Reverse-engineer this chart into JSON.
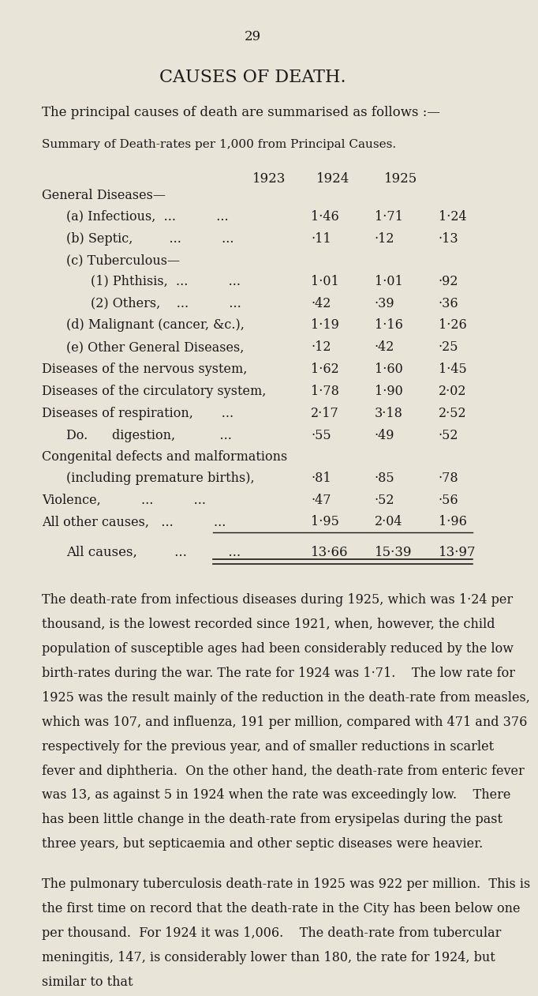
{
  "page_number": "29",
  "title": "CAUSES OF DEATH.",
  "intro": "The principal causes of death are summarised as follows :—",
  "table_title": "Summary of Death-rates per 1,000 from Principal Causes.",
  "col_headers": [
    "1923",
    "1924",
    "1925"
  ],
  "rows": [
    {
      "label": "General Diseases—",
      "indent": 0,
      "vals": [
        "",
        "",
        ""
      ],
      "bold": false,
      "header": true
    },
    {
      "label": "(a) Infectious,  ...          ...",
      "indent": 1,
      "vals": [
        "1·46",
        "1·71",
        "1·24"
      ],
      "bold": false
    },
    {
      "label": "(b) Septic,         ...          ...",
      "indent": 1,
      "vals": [
        "·11",
        "·12",
        "·13"
      ],
      "bold": false
    },
    {
      "label": "(c) Tuberculous—",
      "indent": 1,
      "vals": [
        "",
        "",
        ""
      ],
      "bold": false,
      "header": true
    },
    {
      "label": "(1) Phthisis,  ...          ...",
      "indent": 2,
      "vals": [
        "1·01",
        "1·01",
        "·92"
      ],
      "bold": false
    },
    {
      "label": "(2) Others,    ...          ...",
      "indent": 2,
      "vals": [
        "·42",
        "·39",
        "·36"
      ],
      "bold": false
    },
    {
      "label": "(d) Malignant (cancer, &c.),",
      "indent": 1,
      "vals": [
        "1·19",
        "1·16",
        "1·26"
      ],
      "bold": false
    },
    {
      "label": "(e) Other General Diseases,",
      "indent": 1,
      "vals": [
        "·12",
        "·42",
        "·25"
      ],
      "bold": false
    },
    {
      "label": "Diseases of the nervous system,",
      "indent": 0,
      "vals": [
        "1·62",
        "1·60",
        "1·45"
      ],
      "bold": false
    },
    {
      "label": "Diseases of the circulatory system,",
      "indent": 0,
      "vals": [
        "1·78",
        "1·90",
        "2·02"
      ],
      "bold": false
    },
    {
      "label": "Diseases of respiration,       ...",
      "indent": 0,
      "vals": [
        "2·17",
        "3·18",
        "2·52"
      ],
      "bold": false
    },
    {
      "label": "Do.      digestion,           ...",
      "indent": 1,
      "vals": [
        "·55",
        "·49",
        "·52"
      ],
      "bold": false
    },
    {
      "label": "Congenital defects and malformations",
      "indent": 0,
      "vals": [
        "",
        "",
        ""
      ],
      "bold": false,
      "header": true
    },
    {
      "label": "(including premature births),",
      "indent": 1,
      "vals": [
        "·81",
        "·85",
        "·78"
      ],
      "bold": false
    },
    {
      "label": "Violence,          ...          ...",
      "indent": 0,
      "vals": [
        "·47",
        "·52",
        "·56"
      ],
      "bold": false
    },
    {
      "label": "All other causes,   ...          ...",
      "indent": 0,
      "vals": [
        "1·95",
        "2·04",
        "1·96"
      ],
      "bold": false
    },
    {
      "label": "All causes,         ...          ...",
      "indent": 1,
      "vals": [
        "13·66",
        "15·39",
        "13·97"
      ],
      "bold": true,
      "total": true
    }
  ],
  "para1": "The death-rate from infectious diseases during 1925, which was 1·24 per thousand, is the lowest recorded since 1921, when, however, the child population of susceptible ages had been considerably reduced by the low birth-rates during the war. The rate for 1924 was 1·71.    The low rate for 1925 was the result mainly of the reduction in the death-rate from measles, which was 107, and influenza, 191 per million, compared with 471 and 376 respectively for the previous year, and of smaller reductions in scarlet fever and diphtheria.  On the other hand, the death-rate from enteric fever was 13, as against 5 in 1924 when the rate was exceedingly low.    There has been little change in the death-rate from erysipelas during the past three years, but septicaemia and other septic diseases were heavier.",
  "para2": "The pulmonary tuberculosis death-rate in 1925 was 922 per million.  This is the first time on record that the death-rate in the City has been below one per thousand.  For 1924 it was 1,006.    The death-rate from tubercular meningitis, 147, is considerably lower than 180, the rate for 1924, but similar to that",
  "bg_color": "#e8e4d8",
  "text_color": "#1a1a1a",
  "font_size_title": 15,
  "font_size_body": 11.5,
  "font_size_page": 12
}
